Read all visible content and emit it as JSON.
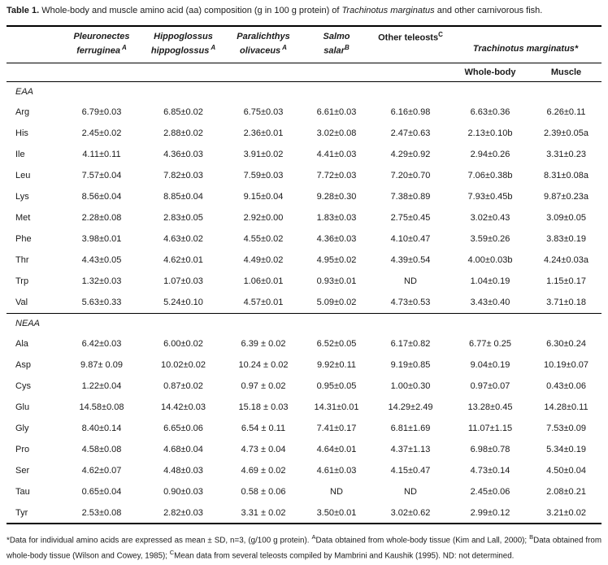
{
  "colors": {
    "background": "#ffffff",
    "text": "#1a1a1a",
    "rule": "#000000"
  },
  "title": {
    "label": "Table 1.",
    "before_species": " Whole-body and muscle amino acid (aa) composition (g in 100 g protein) of ",
    "species": "Trachinotus marginatus",
    "after_species": " and other carnivorous fish."
  },
  "table": {
    "columns": [
      {
        "name_line1": "Pleuronectes",
        "name_line2": "ferruginea",
        "superscript": "A"
      },
      {
        "name_line1": "Hippoglossus",
        "name_line2": "hippoglossus",
        "superscript": "A"
      },
      {
        "name_line1": "Paralichthys",
        "name_line2": "olivaceus",
        "superscript": "A"
      },
      {
        "name_line1": "Salmo",
        "name_line2": "salar",
        "superscript": "B"
      },
      {
        "name_line1": "Other teleosts",
        "superscript": "C"
      }
    ],
    "span_header": {
      "species": "Trachinotus marginatus",
      "marker": "*"
    },
    "sub_headers": [
      "Whole-body",
      "Muscle"
    ],
    "sections": [
      {
        "name": "EAA",
        "rows": [
          {
            "aa": "Arg",
            "values": [
              "6.79±0.03",
              "6.85±0.02",
              "6.75±0.03",
              "6.61±0.03",
              "6.16±0.98",
              "6.63±0.36",
              "6.26±0.11"
            ]
          },
          {
            "aa": "His",
            "values": [
              "2.45±0.02",
              "2.88±0.02",
              "2.36±0.01",
              "3.02±0.08",
              "2.47±0.63",
              "2.13±0.10b",
              "2.39±0.05a"
            ]
          },
          {
            "aa": "Ile",
            "values": [
              "4.11±0.11",
              "4.36±0.03",
              "3.91±0.02",
              "4.41±0.03",
              "4.29±0.92",
              "2.94±0.26",
              "3.31±0.23"
            ]
          },
          {
            "aa": "Leu",
            "values": [
              "7.57±0.04",
              "7.82±0.03",
              "7.59±0.03",
              "7.72±0.03",
              "7.20±0.70",
              "7.06±0.38b",
              "8.31±0.08a"
            ]
          },
          {
            "aa": "Lys",
            "values": [
              "8.56±0.04",
              "8.85±0.04",
              "9.15±0.04",
              "9.28±0.30",
              "7.38±0.89",
              "7.93±0.45b",
              "9.87±0.23a"
            ]
          },
          {
            "aa": "Met",
            "values": [
              "2.28±0.08",
              "2.83±0.05",
              "2.92±0.00",
              "1.83±0.03",
              "2.75±0.45",
              "3.02±0.43",
              "3.09±0.05"
            ]
          },
          {
            "aa": "Phe",
            "values": [
              "3.98±0.01",
              "4.63±0.02",
              "4.55±0.02",
              "4.36±0.03",
              "4.10±0.47",
              "3.59±0.26",
              "3.83±0.19"
            ]
          },
          {
            "aa": "Thr",
            "values": [
              "4.43±0.05",
              "4.62±0.01",
              "4.49±0.02",
              "4.95±0.02",
              "4.39±0.54",
              "4.00±0.03b",
              "4.24±0.03a"
            ]
          },
          {
            "aa": "Trp",
            "values": [
              "1.32±0.03",
              "1.07±0.03",
              "1.06±0.01",
              "0.93±0.01",
              "ND",
              "1.04±0.19",
              "1.15±0.17"
            ]
          },
          {
            "aa": "Val",
            "values": [
              "5.63±0.33",
              "5.24±0.10",
              "4.57±0.01",
              "5.09±0.02",
              "4.73±0.53",
              "3.43±0.40",
              "3.71±0.18"
            ]
          }
        ]
      },
      {
        "name": "NEAA",
        "rows": [
          {
            "aa": "Ala",
            "values": [
              "6.42±0.03",
              "6.00±0.02",
              "6.39 ± 0.02",
              "6.52±0.05",
              "6.17±0.82",
              "6.77± 0.25",
              "6.30±0.24"
            ]
          },
          {
            "aa": "Asp",
            "values": [
              "9.87± 0.09",
              "10.02±0.02",
              "10.24 ± 0.02",
              "9.92±0.11",
              "9.19±0.85",
              "9.04±0.19",
              "10.19±0.07"
            ]
          },
          {
            "aa": "Cys",
            "values": [
              "1.22±0.04",
              "0.87±0.02",
              "0.97 ± 0.02",
              "0.95±0.05",
              "1.00±0.30",
              "0.97±0.07",
              "0.43±0.06"
            ]
          },
          {
            "aa": "Glu",
            "values": [
              "14.58±0.08",
              "14.42±0.03",
              "15.18 ± 0.03",
              "14.31±0.01",
              "14.29±2.49",
              "13.28±0.45",
              "14.28±0.11"
            ]
          },
          {
            "aa": "Gly",
            "values": [
              "8.40±0.14",
              "6.65±0.06",
              "6.54 ± 0.11",
              "7.41±0.17",
              "6.81±1.69",
              "11.07±1.15",
              "7.53±0.09"
            ]
          },
          {
            "aa": "Pro",
            "values": [
              "4.58±0.08",
              "4.68±0.04",
              "4.73 ± 0.04",
              "4.64±0.01",
              "4.37±1.13",
              "6.98±0.78",
              "5.34±0.19"
            ]
          },
          {
            "aa": "Ser",
            "values": [
              "4.62±0.07",
              "4.48±0.03",
              "4.69 ± 0.02",
              "4.61±0.03",
              "4.15±0.47",
              "4.73±0.14",
              "4.50±0.04"
            ]
          },
          {
            "aa": "Tau",
            "values": [
              "0.65±0.04",
              "0.90±0.03",
              "0.58 ± 0.06",
              "ND",
              "ND",
              "2.45±0.06",
              "2.08±0.21"
            ]
          },
          {
            "aa": "Tyr",
            "values": [
              "2.53±0.08",
              "2.82±0.03",
              "3.31 ± 0.02",
              "3.50±0.01",
              "3.02±0.62",
              "2.99±0.12",
              "3.21±0.02"
            ]
          }
        ]
      }
    ]
  },
  "footnote": {
    "segments": [
      {
        "text": "*Data for individual amino acids are expressed as mean ± SD, n=3, (g/100 g protein). "
      },
      {
        "sup": "A"
      },
      {
        "text": "Data obtained from whole-body tissue (Kim and Lall, 2000); "
      },
      {
        "sup": "B"
      },
      {
        "text": "Data obtained from whole-body tissue (Wilson and Cowey, 1985); "
      },
      {
        "sup": "C"
      },
      {
        "text": "Mean data from several teleosts compiled by Mambrini and Kaushik (1995). ND: not determined."
      }
    ]
  }
}
